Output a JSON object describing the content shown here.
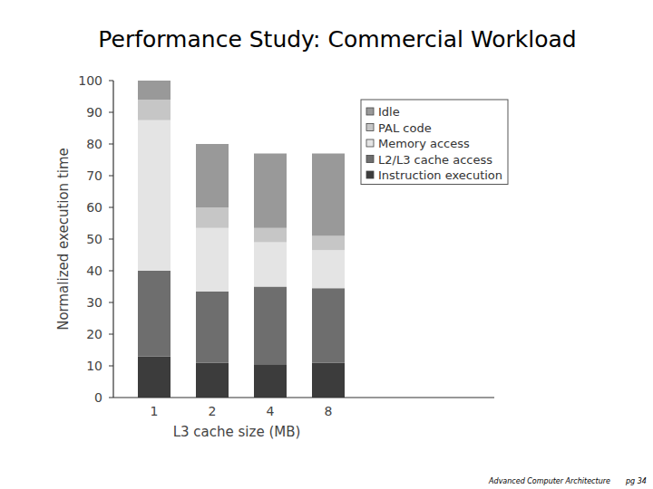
{
  "chart_data": {
    "type": "bar",
    "stacked": true,
    "title": "Performance Study: Commercial Workload",
    "x_label": "L3 cache size (MB)",
    "y_label": "Normalized execution time",
    "categories": [
      "1",
      "2",
      "4",
      "8"
    ],
    "series": [
      {
        "name": "Instruction execution",
        "color": "#3c3c3c",
        "values": [
          13,
          11,
          10.5,
          11
        ]
      },
      {
        "name": "L2/L3 cache access",
        "color": "#6e6e6e",
        "values": [
          27,
          22.5,
          24.5,
          23.5
        ]
      },
      {
        "name": "Memory access",
        "color": "#e4e4e4",
        "values": [
          47.5,
          20,
          14,
          12
        ]
      },
      {
        "name": "PAL code",
        "color": "#c6c6c6",
        "values": [
          6.5,
          6.5,
          4.5,
          4.5
        ]
      },
      {
        "name": "Idle",
        "color": "#999999",
        "values": [
          6,
          20,
          23.5,
          26
        ]
      }
    ],
    "ylim": [
      0,
      100
    ],
    "yticks": [
      0,
      10,
      20,
      30,
      40,
      50,
      60,
      70,
      80,
      90,
      100
    ],
    "grid": false,
    "legend": "upper right"
  },
  "footer": {
    "course": "Advanced Computer Architecture",
    "page": "pg 34"
  }
}
